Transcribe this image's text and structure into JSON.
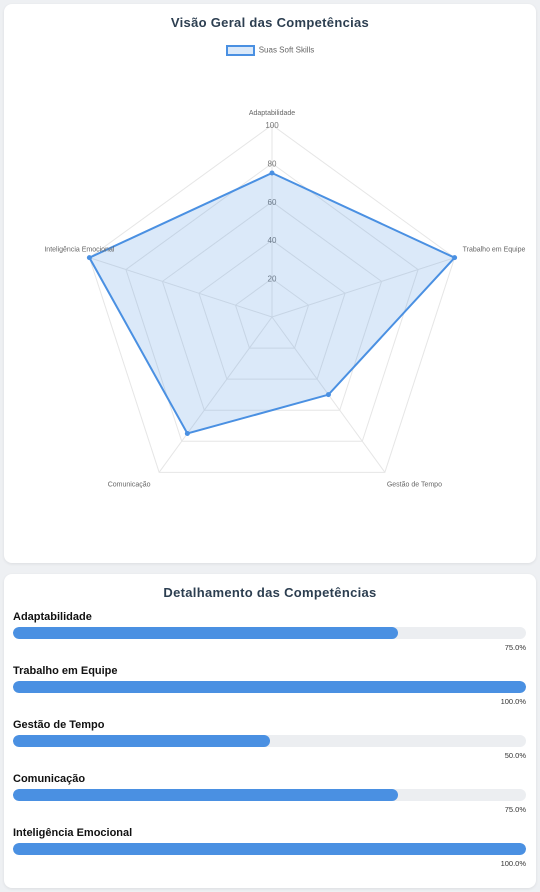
{
  "radar": {
    "title": "Visão Geral das Competências"
  },
  "details": {
    "title": "Detalhamento das Competências",
    "items": [
      {
        "label": "Adaptabilidade",
        "percent_text": "75.0%",
        "value": 75
      },
      {
        "label": "Trabalho em Equipe",
        "percent_text": "100.0%",
        "value": 100
      },
      {
        "label": "Gestão de Tempo",
        "percent_text": "50.0%",
        "value": 50
      },
      {
        "label": "Comunicação",
        "percent_text": "75.0%",
        "value": 75
      },
      {
        "label": "Inteligência Emocional",
        "percent_text": "100.0%",
        "value": 100
      }
    ]
  },
  "colors": {
    "accent": "#4a90e2",
    "fill": "rgba(74,144,226,0.2)",
    "grid": "#e6e6e6",
    "track": "#eceef1"
  },
  "chart_data": {
    "type": "radar",
    "title": "Visão Geral das Competências",
    "categories": [
      "Adaptabilidade",
      "Trabalho em Equipe",
      "Gestão de Tempo",
      "Comunicação",
      "Inteligência Emocional"
    ],
    "series": [
      {
        "name": "Suas Soft Skills",
        "values": [
          75,
          100,
          50,
          75,
          100
        ]
      }
    ],
    "rlim": [
      0,
      100
    ],
    "ticks": [
      "20",
      "40",
      "60",
      "80",
      "100"
    ],
    "legend": "top"
  }
}
